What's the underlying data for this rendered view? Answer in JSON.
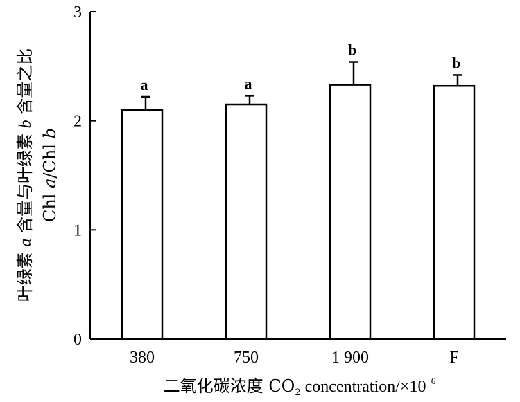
{
  "chart_data": {
    "type": "bar",
    "categories": [
      "380",
      "750",
      "1 900",
      "F"
    ],
    "values": [
      2.1,
      2.15,
      2.33,
      2.32
    ],
    "errors": [
      0.12,
      0.08,
      0.21,
      0.1
    ],
    "significance": [
      "a",
      "a",
      "b",
      "b"
    ],
    "ylim": [
      0,
      3
    ],
    "yticks": [
      "0",
      "1",
      "2",
      "3"
    ],
    "ylabel": {
      "line1": [
        "叶绿素 ",
        "a",
        " 含量与叶绿素 ",
        "b",
        " 含量之比"
      ],
      "line2": [
        "Chl ",
        "a",
        "/Chl ",
        "b"
      ]
    },
    "xlabel": {
      "prefix": "二氧化碳浓度  CO",
      "sub": "2",
      "middle": " concentration/×10",
      "sup": "−6"
    },
    "bar_color": "#ffffff",
    "stroke_color": "#000000",
    "grid": false
  }
}
